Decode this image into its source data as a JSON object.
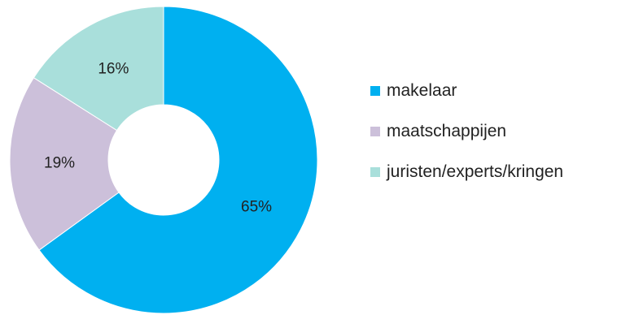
{
  "chart_data": {
    "type": "pie",
    "subtype": "donut",
    "categories": [
      "makelaar",
      "maatschappijen",
      "juristen/experts/kringen"
    ],
    "values": [
      65,
      19,
      16
    ],
    "value_labels": [
      "65%",
      "19%",
      "16%"
    ],
    "colors": [
      "#00b0f0",
      "#ccc0da",
      "#a9dfdb"
    ],
    "title": "",
    "legend": "right",
    "start_angle": "12 o'clock, clockwise"
  }
}
